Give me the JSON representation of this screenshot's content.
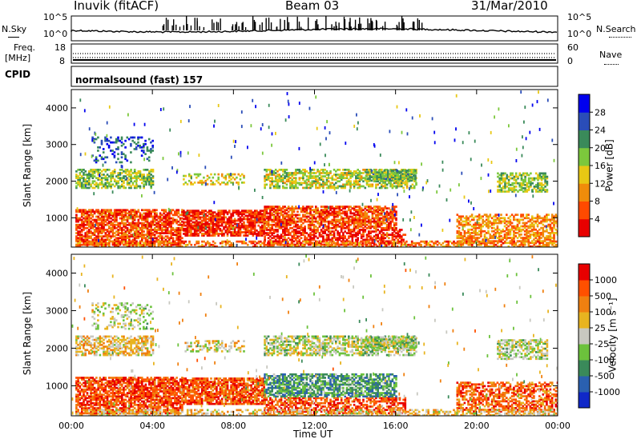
{
  "header": {
    "station": "Inuvik (fitACF)",
    "beam": "Beam 03",
    "date": "31/Mar/2010"
  },
  "top_panel": {
    "left_label": "N.Sky",
    "left_ticks": [
      "10^5",
      "10^0"
    ],
    "right_ticks": [
      "10^5",
      "10^0"
    ],
    "right_label": "N.Search"
  },
  "freq_panel": {
    "left_label_1": "Freq.",
    "left_label_2": "[MHz]",
    "left_ticks": [
      "18",
      "8"
    ],
    "right_ticks": [
      "60",
      "0"
    ],
    "right_label": "Nave"
  },
  "cpid_panel": {
    "label": "CPID",
    "program": "normalsound (fast) 157"
  },
  "chart_data": [
    {
      "type": "heatmap",
      "name": "power",
      "ylabel": "Slant Range [km]",
      "yticks": [
        "1000",
        "2000",
        "3000",
        "4000"
      ],
      "ylim": [
        200,
        4500
      ],
      "xlim": [
        0,
        24
      ],
      "colorbar_label": "Power [dB]",
      "colorbar_ticks": [
        "28",
        "24",
        "20",
        "16",
        "12",
        "8",
        "4"
      ],
      "colorbar_colors": [
        "#0000ee",
        "#2a4db8",
        "#3a8a5a",
        "#7cc83c",
        "#e8c814",
        "#f08c0a",
        "#ff4a00",
        "#e80000"
      ]
    },
    {
      "type": "heatmap",
      "name": "velocity",
      "ylabel": "Slant Range [km]",
      "yticks": [
        "1000",
        "2000",
        "3000",
        "4000"
      ],
      "ylim": [
        200,
        4500
      ],
      "xlim": [
        0,
        24
      ],
      "xlabel": "Time UT",
      "xticks": [
        "00:00",
        "04:00",
        "08:00",
        "12:00",
        "16:00",
        "20:00",
        "00:00"
      ],
      "colorbar_label": "Velocity [m s⁻¹]",
      "colorbar_ticks": [
        "1000",
        "500",
        "100",
        "25",
        "-25",
        "-100",
        "-500",
        "-1000"
      ],
      "colorbar_colors": [
        "#1028c8",
        "#2a60b0",
        "#3a8a5a",
        "#6cc23c",
        "#c8c8c0",
        "#e8b420",
        "#f08010",
        "#ff5000",
        "#e80000"
      ]
    }
  ]
}
